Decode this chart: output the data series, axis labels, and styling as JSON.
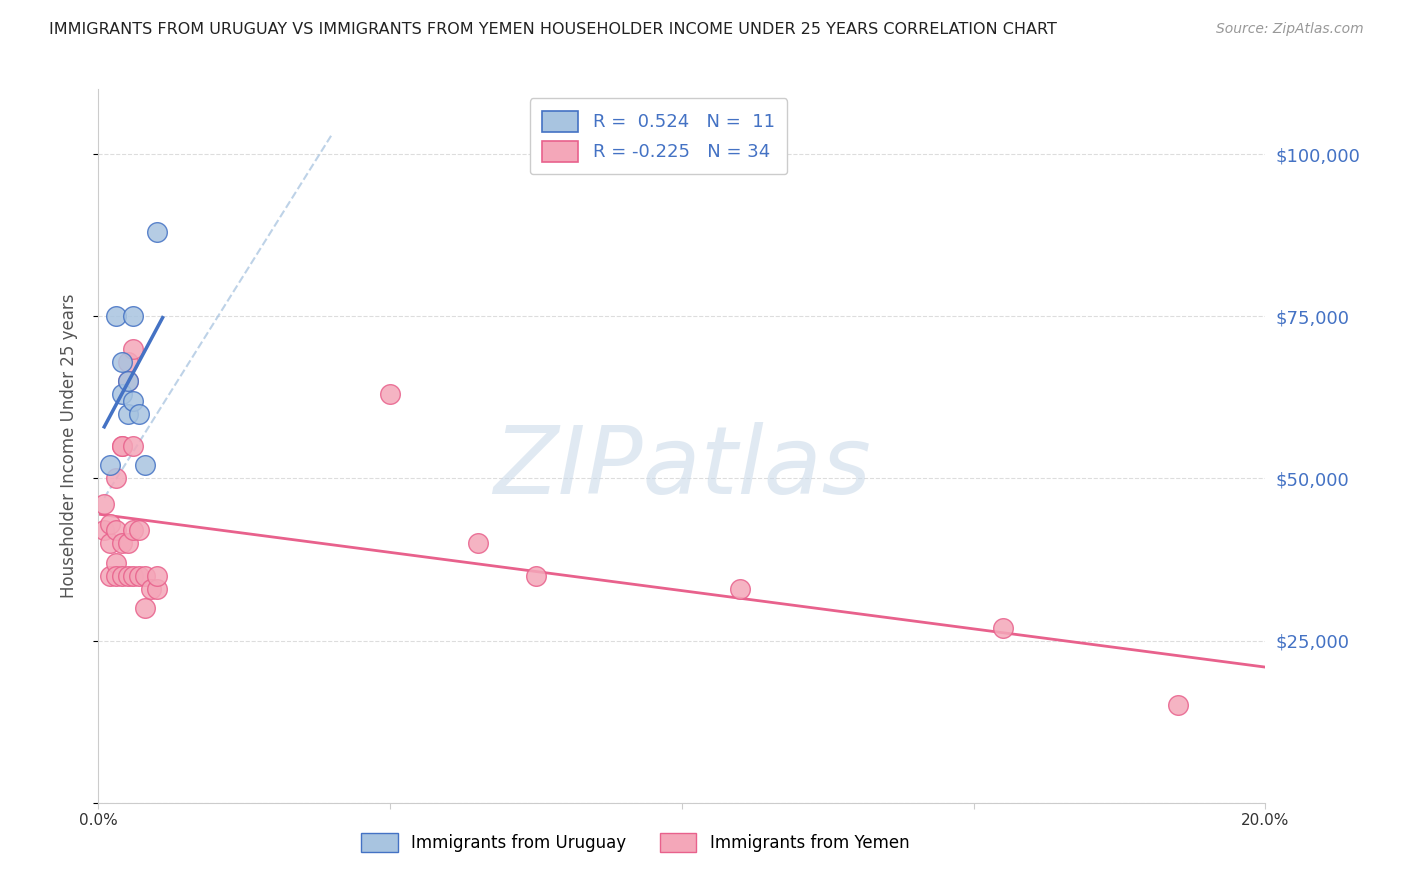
{
  "title": "IMMIGRANTS FROM URUGUAY VS IMMIGRANTS FROM YEMEN HOUSEHOLDER INCOME UNDER 25 YEARS CORRELATION CHART",
  "source": "Source: ZipAtlas.com",
  "ylabel": "Householder Income Under 25 years",
  "xlim": [
    0.0,
    0.2
  ],
  "ylim": [
    0,
    110000
  ],
  "yticks": [
    0,
    25000,
    50000,
    75000,
    100000
  ],
  "ytick_labels": [
    "",
    "$25,000",
    "$50,000",
    "$75,000",
    "$100,000"
  ],
  "xticks": [
    0.0,
    0.05,
    0.1,
    0.15,
    0.2
  ],
  "xtick_labels": [
    "0.0%",
    "",
    "",
    "",
    "20.0%"
  ],
  "r_uruguay": 0.524,
  "n_uruguay": 11,
  "r_yemen": -0.225,
  "n_yemen": 34,
  "color_uruguay": "#a8c4e0",
  "color_yemen": "#f4a7b9",
  "line_color_uruguay": "#4472c4",
  "line_color_yemen": "#e8618c",
  "diagonal_color": "#a8c4e0",
  "background_color": "#ffffff",
  "grid_color": "#dddddd",
  "title_color": "#222222",
  "axis_label_color": "#555555",
  "right_tick_color": "#4472c4",
  "uruguay_points_x": [
    0.002,
    0.003,
    0.004,
    0.004,
    0.005,
    0.005,
    0.006,
    0.006,
    0.007,
    0.008,
    0.01
  ],
  "uruguay_points_y": [
    52000,
    75000,
    63000,
    68000,
    60000,
    65000,
    62000,
    75000,
    60000,
    52000,
    88000
  ],
  "yemen_points_x": [
    0.001,
    0.001,
    0.002,
    0.002,
    0.002,
    0.003,
    0.003,
    0.003,
    0.003,
    0.004,
    0.004,
    0.004,
    0.004,
    0.005,
    0.005,
    0.005,
    0.005,
    0.006,
    0.006,
    0.006,
    0.006,
    0.007,
    0.007,
    0.008,
    0.008,
    0.009,
    0.01,
    0.01,
    0.05,
    0.065,
    0.075,
    0.11,
    0.155,
    0.185
  ],
  "yemen_points_y": [
    46000,
    42000,
    40000,
    43000,
    35000,
    50000,
    42000,
    37000,
    35000,
    55000,
    55000,
    40000,
    35000,
    68000,
    65000,
    40000,
    35000,
    70000,
    55000,
    42000,
    35000,
    42000,
    35000,
    35000,
    30000,
    33000,
    33000,
    35000,
    63000,
    40000,
    35000,
    33000,
    27000,
    15000
  ],
  "watermark_text": "ZIPatlas",
  "watermark_color": "#c8d8e8",
  "legend_label_uruguay": "Immigrants from Uruguay",
  "legend_label_yemen": "Immigrants from Yemen"
}
